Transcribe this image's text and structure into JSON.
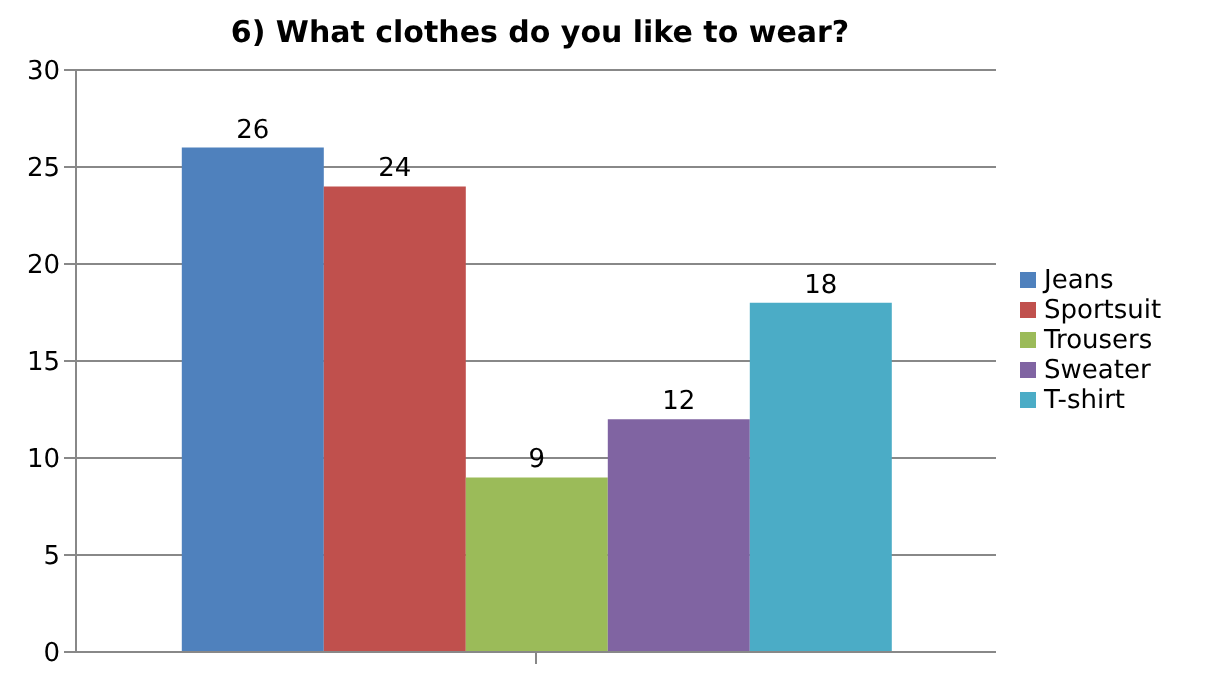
{
  "chart_data": {
    "type": "bar",
    "title": "6) What clothes do you like to wear?",
    "categories": [
      null
    ],
    "series": [
      {
        "name": "Jeans",
        "color": "#4f81bd",
        "values": [
          26
        ]
      },
      {
        "name": "Sportsuit",
        "color": "#c0504d",
        "values": [
          24
        ]
      },
      {
        "name": "Trousers",
        "color": "#9bbb59",
        "values": [
          9
        ]
      },
      {
        "name": "Sweater",
        "color": "#8064a2",
        "values": [
          12
        ]
      },
      {
        "name": "T-shirt",
        "color": "#4bacc6",
        "values": [
          18
        ]
      }
    ],
    "ylim": [
      0,
      30
    ],
    "yticks": [
      0,
      5,
      10,
      15,
      20,
      25,
      30
    ],
    "grid": "y",
    "legend": "right",
    "data_labels": true
  }
}
